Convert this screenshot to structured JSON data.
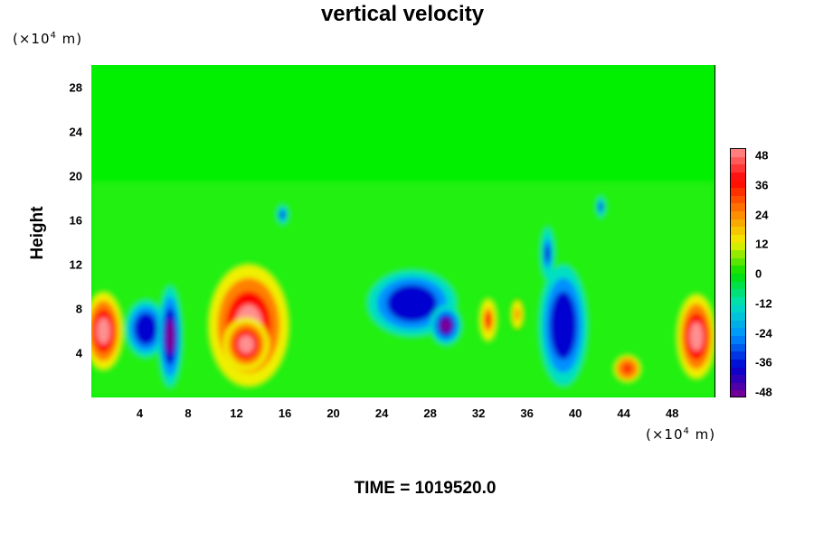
{
  "title": "vertical velocity",
  "y_unit": {
    "prefix": "(×10",
    "exp": "4",
    "suffix": " m)"
  },
  "x_unit": {
    "prefix": "(×10",
    "exp": "4",
    "suffix": " m)"
  },
  "ylabel": "Height",
  "time_label": "TIME = 1019520.0",
  "chart_data": {
    "type": "heatmap",
    "title": "vertical velocity",
    "ylabel": "Height",
    "xlabel": "",
    "x_units": "(×10^4 m)",
    "y_units": "(×10^4 m)",
    "xlim": [
      0,
      51.5
    ],
    "ylim": [
      0,
      30
    ],
    "x_ticks": [
      "4",
      "8",
      "12",
      "16",
      "20",
      "24",
      "28",
      "32",
      "36",
      "40",
      "44",
      "48"
    ],
    "y_ticks": [
      "4",
      "8",
      "12",
      "16",
      "20",
      "24",
      "28"
    ],
    "colorbar": {
      "range": [
        -48,
        48
      ],
      "ticks": [
        "48",
        "36",
        "24",
        "12",
        "0",
        "-12",
        "-24",
        "-36",
        "-48"
      ]
    },
    "background_value": 0,
    "features": [
      {
        "kind": "updraft",
        "x": 1.0,
        "y": 6.0,
        "rx": 1.6,
        "ry": 3.5,
        "peak": 44
      },
      {
        "kind": "downdraft",
        "x": 4.5,
        "y": 6.2,
        "rx": 1.7,
        "ry": 2.6,
        "peak": -40
      },
      {
        "kind": "downdraft",
        "x": 6.5,
        "y": 5.5,
        "rx": 1.0,
        "ry": 4.6,
        "peak": -48
      },
      {
        "kind": "updraft",
        "x": 13.0,
        "y": 6.5,
        "rx": 3.3,
        "ry": 5.5,
        "peak": 46
      },
      {
        "kind": "updraft",
        "x": 12.8,
        "y": 4.8,
        "rx": 1.9,
        "ry": 2.4,
        "peak": 48
      },
      {
        "kind": "downdraft",
        "x": 26.5,
        "y": 8.5,
        "rx": 3.7,
        "ry": 3.0,
        "peak": -40
      },
      {
        "kind": "downdraft",
        "x": 29.3,
        "y": 6.5,
        "rx": 1.3,
        "ry": 1.8,
        "peak": -46
      },
      {
        "kind": "updraft",
        "x": 32.8,
        "y": 7.0,
        "rx": 0.7,
        "ry": 1.9,
        "peak": 36
      },
      {
        "kind": "updraft",
        "x": 35.2,
        "y": 7.5,
        "rx": 0.6,
        "ry": 1.6,
        "peak": 24
      },
      {
        "kind": "downdraft",
        "x": 39.0,
        "y": 6.5,
        "rx": 2.0,
        "ry": 5.5,
        "peak": -40
      },
      {
        "kind": "downdraft",
        "x": 37.7,
        "y": 13.0,
        "rx": 0.6,
        "ry": 2.4,
        "peak": -30
      },
      {
        "kind": "updraft",
        "x": 44.3,
        "y": 2.6,
        "rx": 1.1,
        "ry": 1.2,
        "peak": 38
      },
      {
        "kind": "updraft",
        "x": 50.0,
        "y": 5.5,
        "rx": 1.6,
        "ry": 3.8,
        "peak": 46
      },
      {
        "kind": "downdraft",
        "x": 15.8,
        "y": 16.5,
        "rx": 0.5,
        "ry": 0.9,
        "peak": -30
      },
      {
        "kind": "downdraft",
        "x": 42.1,
        "y": 17.2,
        "rx": 0.4,
        "ry": 1.0,
        "peak": -30
      }
    ]
  },
  "colors": {
    "background": "#00f000",
    "colorbar_stops": [
      "#ff9090",
      "#ff0000",
      "#ff8000",
      "#f0f000",
      "#00e000",
      "#00e0c0",
      "#0090ff",
      "#0000d0",
      "#800090"
    ]
  }
}
